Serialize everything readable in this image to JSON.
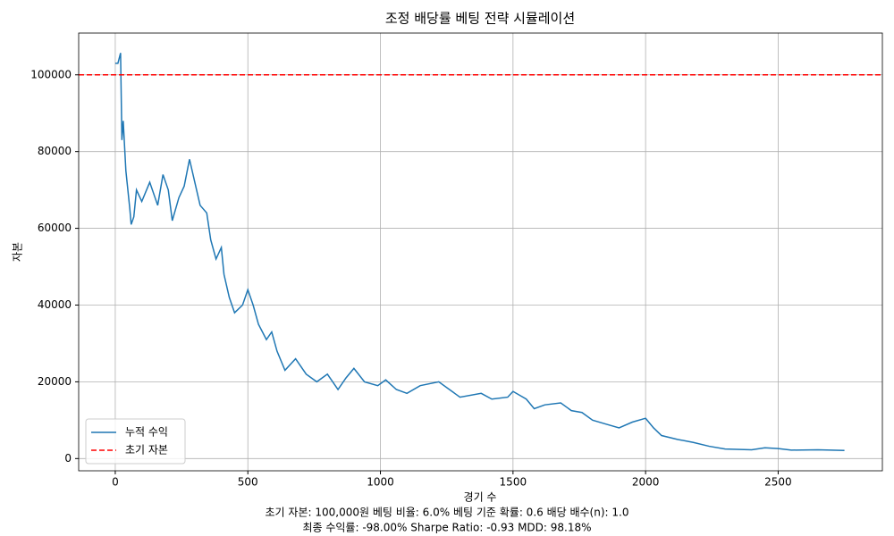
{
  "chart_data": {
    "type": "line",
    "title": "조정 배당률 베팅 전략 시뮬레이션",
    "x_label": "경기 수",
    "y_label": "자본",
    "annotations": [
      "초기 자본: 100,000원     베팅 비율: 6.0%     베팅 기준 확률: 0.6     배당 배수(n): 1.0",
      "최종 수익률: -98.00%     Sharpe Ratio: -0.93     MDD: 98.18%"
    ],
    "x": [
      0,
      10,
      20,
      25,
      30,
      40,
      55,
      60,
      70,
      80,
      100,
      130,
      160,
      180,
      200,
      215,
      240,
      260,
      280,
      300,
      320,
      345,
      360,
      380,
      400,
      410,
      430,
      450,
      480,
      500,
      520,
      540,
      570,
      590,
      610,
      640,
      680,
      720,
      760,
      800,
      840,
      870,
      900,
      940,
      990,
      1020,
      1060,
      1100,
      1150,
      1220,
      1260,
      1300,
      1380,
      1420,
      1480,
      1500,
      1550,
      1580,
      1620,
      1680,
      1720,
      1760,
      1800,
      1850,
      1900,
      1950,
      2000,
      2030,
      2060,
      2120,
      2180,
      2240,
      2300,
      2400,
      2450,
      2500,
      2550,
      2650,
      2750
    ],
    "series": [
      {
        "name": "누적 수익",
        "color": "#1f77b4",
        "values": [
          103000,
          103000,
          105700,
          83000,
          88000,
          75000,
          65000,
          61000,
          63000,
          70000,
          67000,
          72000,
          66000,
          74000,
          70000,
          62000,
          68000,
          71000,
          78000,
          72000,
          66000,
          64000,
          57000,
          52000,
          55000,
          48000,
          42000,
          38000,
          40000,
          44000,
          40000,
          35000,
          31000,
          33000,
          28000,
          23000,
          26000,
          22000,
          20000,
          22000,
          18000,
          21000,
          23500,
          20000,
          19000,
          20500,
          18000,
          17000,
          19000,
          20000,
          18000,
          16000,
          17000,
          15500,
          16000,
          17500,
          15500,
          13000,
          14000,
          14500,
          12500,
          12000,
          10000,
          9000,
          8000,
          9500,
          10500,
          8000,
          6000,
          5000,
          4200,
          3200,
          2500,
          2300,
          2800,
          2600,
          2200,
          2300,
          2100
        ]
      }
    ],
    "hline": {
      "name": "초기 자본",
      "color": "#ff0000",
      "value": 100000,
      "style": "dashed"
    },
    "xlim": [
      -138,
      2893
    ],
    "xticks": [
      0,
      500,
      1000,
      1500,
      2000,
      2500
    ],
    "ylim": [
      -3185,
      110885
    ],
    "yticks": [
      0,
      20000,
      40000,
      60000,
      80000,
      100000
    ],
    "grid": true,
    "legend": "lower left"
  }
}
